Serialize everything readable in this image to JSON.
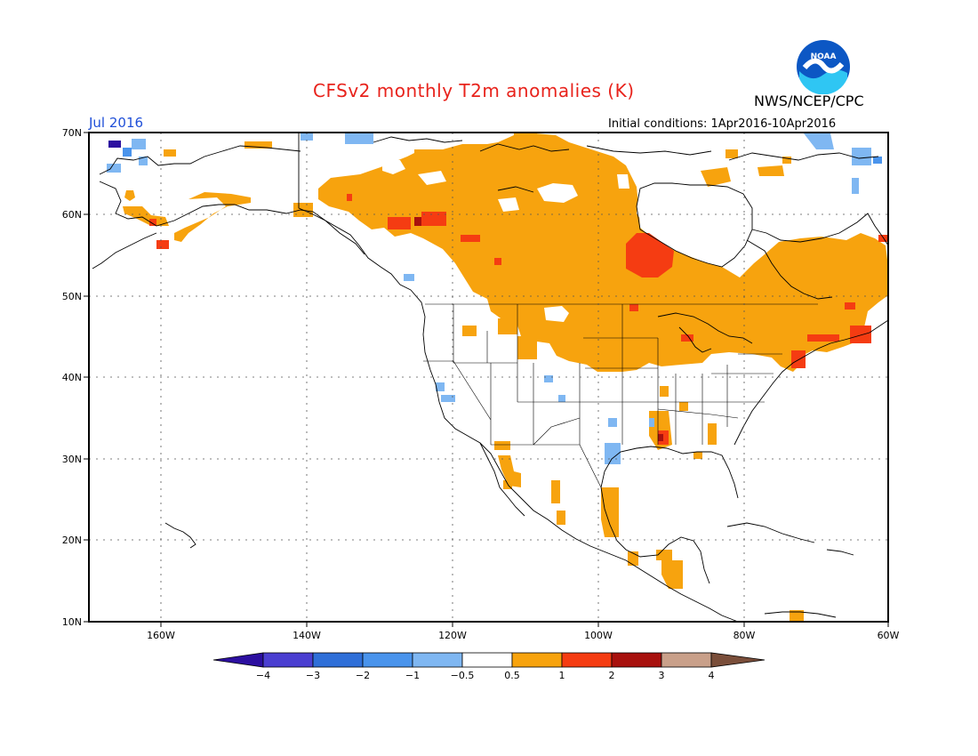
{
  "header": {
    "title": "CFSv2 monthly T2m anomalies (K)",
    "agency": "NWS/NCEP/CPC",
    "month": "Jul 2016",
    "initial_conditions": "Initial conditions: 1Apr2016-10Apr2016",
    "logo_text": "NOAA"
  },
  "map": {
    "lat_labels": [
      "70N",
      "60N",
      "50N",
      "40N",
      "30N",
      "20N",
      "10N"
    ],
    "lon_labels": [
      "160W",
      "140W",
      "120W",
      "100W",
      "80W",
      "60W"
    ]
  },
  "colorbar": {
    "labels": [
      "-4",
      "-3",
      "-2",
      "-1",
      "-0.5",
      "0.5",
      "1",
      "2",
      "3",
      "4"
    ],
    "colors": [
      "#2c0fa0",
      "#4b3fd1",
      "#2f6fd8",
      "#4a94ec",
      "#7fb7f2",
      "#ffffff",
      "#f7a30e",
      "#f53c12",
      "#a8110e",
      "#c9a08a",
      "#7a4e3a"
    ]
  },
  "colors": {
    "warm_0_5_to_1": "#f7a30e",
    "warm_1_to_2": "#f53c12",
    "warm_2_to_3": "#a8110e",
    "cool_minus_0_5_to_minus_1": "#7fb7f2",
    "cool_minus_1_to_minus_2": "#4a94ec",
    "cool_minus_4": "#2c0fa0",
    "title": "#e8231c",
    "month": "#1f4fd8"
  }
}
